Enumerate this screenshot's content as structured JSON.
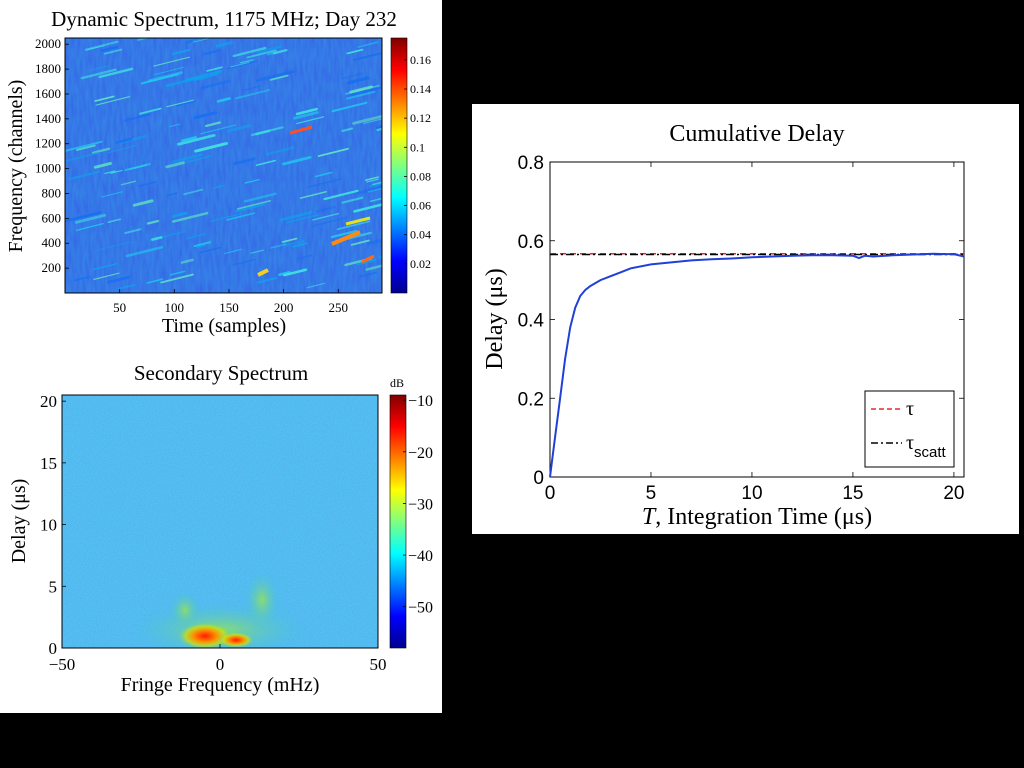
{
  "charts": {
    "dynamic": {
      "title": "Dynamic Spectrum, 1175 MHz; Day 232",
      "xlabel": "Time (samples)",
      "ylabel": "Frequency (channels)",
      "xticks": [
        "50",
        "100",
        "150",
        "200",
        "250"
      ],
      "yticks": [
        "200",
        "400",
        "600",
        "800",
        "1000",
        "1200",
        "1400",
        "1600",
        "1800",
        "2000"
      ],
      "cbar_ticks": [
        "0.02",
        "0.04",
        "0.06",
        "0.08",
        "0.1",
        "0.12",
        "0.14",
        "0.16"
      ]
    },
    "secondary": {
      "title": "Secondary Spectrum",
      "xlabel": "Fringe Frequency (mHz)",
      "ylabel": "Delay (μs)",
      "xticks": [
        "−50",
        "0",
        "50"
      ],
      "yticks": [
        "0",
        "5",
        "10",
        "15",
        "20"
      ],
      "cbar_unit": "dB",
      "cbar_ticks": [
        "−10",
        "−20",
        "−30",
        "−40",
        "−50"
      ]
    },
    "cumulative": {
      "title": "Cumulative Delay",
      "xlabel_var": "T",
      "xlabel_rest": ", Integration Time (μs)",
      "ylabel": "Delay (μs)",
      "xticks": [
        "0",
        "5",
        "10",
        "15",
        "20"
      ],
      "yticks": [
        "0",
        "0.2",
        "0.4",
        "0.6",
        "0.8"
      ],
      "legend": {
        "tau": "τ",
        "tau_scatt_main": "τ",
        "tau_scatt_sub": "scatt"
      }
    }
  },
  "chart_data": [
    {
      "type": "heatmap",
      "title": "Dynamic Spectrum, 1175 MHz; Day 232",
      "xlabel": "Time (samples)",
      "ylabel": "Frequency (channels)",
      "xlim": [
        0,
        290
      ],
      "ylim": [
        0,
        2050
      ],
      "colorbar_range": [
        0,
        0.175
      ],
      "bright_features": [
        {
          "x": 255,
          "y": 450,
          "value": 0.16
        },
        {
          "x": 210,
          "y": 1300,
          "value": 0.15
        },
        {
          "x": 183,
          "y": 180,
          "value": 0.13
        },
        {
          "x": 268,
          "y": 280,
          "value": 0.14
        }
      ]
    },
    {
      "type": "heatmap",
      "title": "Secondary Spectrum",
      "xlabel": "Fringe Frequency (mHz)",
      "ylabel": "Delay (μs)",
      "xlim": [
        -50,
        50
      ],
      "ylim": [
        0,
        20.5
      ],
      "colorbar_range_db": [
        -58,
        -9
      ],
      "peak": {
        "x": -3,
        "y": 0.8,
        "value_db": -10
      }
    },
    {
      "type": "line",
      "title": "Cumulative Delay",
      "xlabel": "T, Integration Time (μs)",
      "ylabel": "Delay (μs)",
      "xlim": [
        0,
        20.5
      ],
      "ylim": [
        0,
        0.8
      ],
      "series": [
        {
          "name": "τ",
          "style": "dashed",
          "color": "#e8282b",
          "x": [
            0,
            20.5
          ],
          "y": [
            0.567,
            0.567
          ]
        },
        {
          "name": "τscatt",
          "style": "dashdot",
          "color": "#000000",
          "x": [
            0,
            20.5
          ],
          "y": [
            0.565,
            0.565
          ]
        },
        {
          "style": "solid",
          "color": "#2040d8",
          "x": [
            0,
            0.25,
            0.5,
            0.75,
            1,
            1.25,
            1.5,
            1.75,
            2,
            2.5,
            3,
            3.5,
            4,
            5,
            6,
            7,
            8,
            9,
            10,
            11,
            12,
            13,
            14,
            15,
            15.3,
            15.6,
            16,
            17,
            18,
            19,
            19.5,
            20,
            20.5
          ],
          "y": [
            0,
            0.1,
            0.2,
            0.3,
            0.38,
            0.43,
            0.46,
            0.475,
            0.485,
            0.5,
            0.51,
            0.52,
            0.53,
            0.54,
            0.545,
            0.55,
            0.553,
            0.555,
            0.558,
            0.56,
            0.562,
            0.563,
            0.563,
            0.562,
            0.556,
            0.562,
            0.56,
            0.563,
            0.565,
            0.567,
            0.566,
            0.566,
            0.56
          ]
        }
      ]
    }
  ]
}
